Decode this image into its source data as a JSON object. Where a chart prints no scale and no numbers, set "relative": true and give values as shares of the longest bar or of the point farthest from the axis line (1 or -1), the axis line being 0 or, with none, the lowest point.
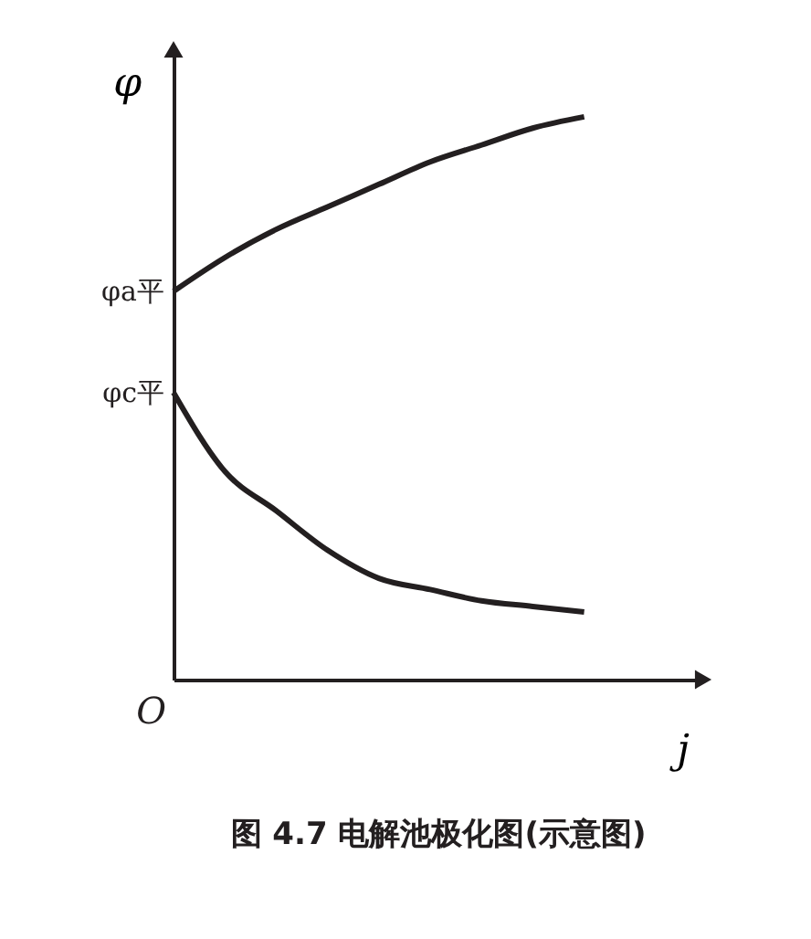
{
  "chart_data": {
    "type": "line",
    "relative": true,
    "title": "图 4.7   电解池极化图(示意图)",
    "xlabel": "j",
    "ylabel": "φ",
    "categories": [
      null,
      null,
      null,
      null,
      null,
      null,
      null,
      null,
      null
    ],
    "series": [
      {
        "color": "#231f20",
        "values": [
          0.69,
          0.75,
          0.8,
          0.84,
          0.88,
          0.92,
          0.95,
          0.98,
          1
        ]
      },
      {
        "color": "#231f20",
        "values": [
          0.51,
          0.37,
          0.3,
          0.23,
          0.18,
          0.16,
          0.14,
          0.13,
          0.12
        ]
      }
    ],
    "annotations": [
      "φa平",
      "φc平",
      "O"
    ],
    "legend": false,
    "grid": false,
    "marker": "none",
    "line_style": "solid"
  }
}
